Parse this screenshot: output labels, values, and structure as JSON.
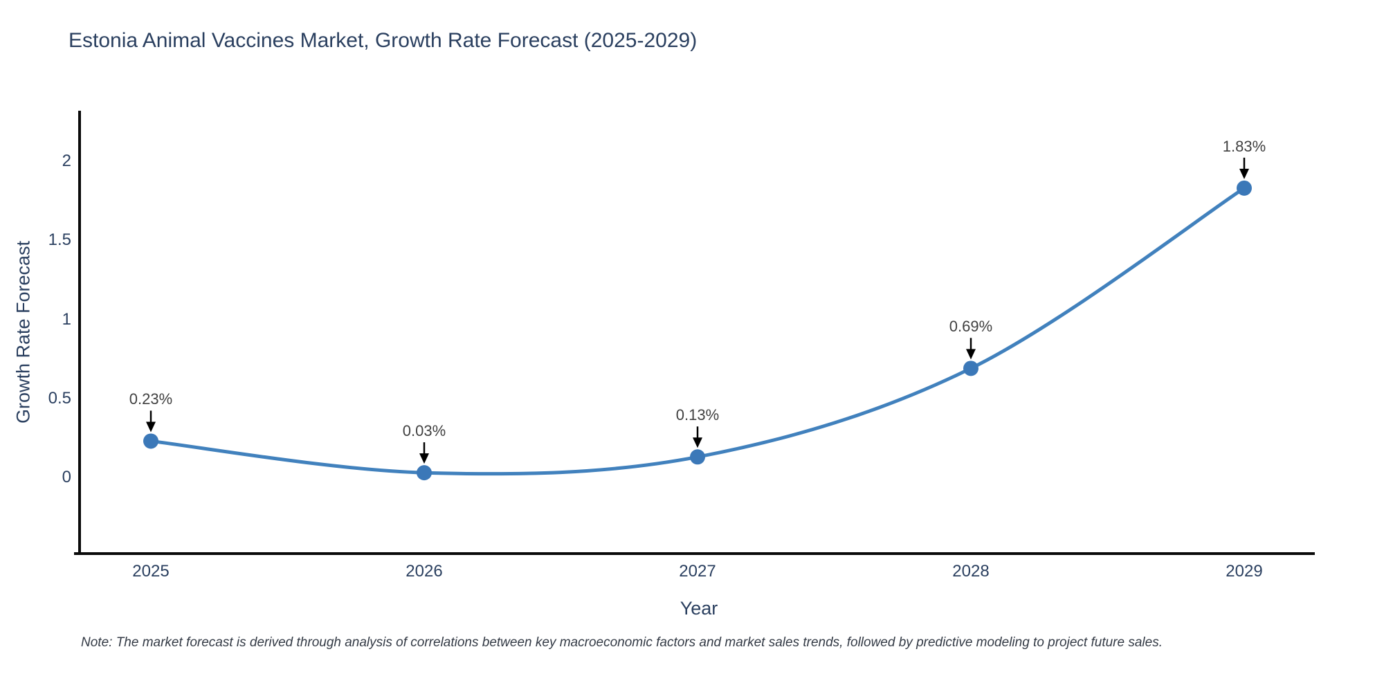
{
  "title": "Estonia Animal Vaccines Market, Growth Rate Forecast (2025-2029)",
  "note": "Note: The market forecast is derived through analysis of correlations between key macroeconomic factors and market sales trends, followed by predictive modeling to project future sales.",
  "chart_data": {
    "type": "line",
    "title": "Estonia Animal Vaccines Market, Growth Rate Forecast (2025-2029)",
    "xlabel": "Year",
    "ylabel": "Growth Rate Forecast",
    "x": [
      2025,
      2026,
      2027,
      2028,
      2029
    ],
    "values": [
      0.23,
      0.03,
      0.13,
      0.69,
      1.83
    ],
    "point_labels": [
      "0.23%",
      "0.03%",
      "0.13%",
      "0.69%",
      "1.83%"
    ],
    "x_tick_labels": [
      "2025",
      "2026",
      "2027",
      "2028",
      "2029"
    ],
    "y_ticks": [
      2,
      1.5,
      1,
      0.5,
      0
    ],
    "y_tick_labels": [
      "2",
      "1.5",
      "1",
      "0.5",
      "0"
    ],
    "ylim": [
      -0.48,
      2.32
    ],
    "xlim": [
      2024.74,
      2029.26
    ],
    "grid": false,
    "legend_position": "none",
    "line_shape": "spline",
    "line_color": "#4181bd",
    "marker_color": "#3b78b8",
    "arrow_color": "#000000",
    "axis_line_color": "#0a0a0a"
  }
}
